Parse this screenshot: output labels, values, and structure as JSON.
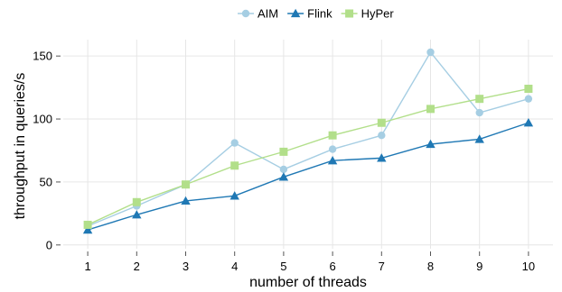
{
  "chart_data": {
    "type": "line",
    "x": [
      1,
      2,
      3,
      4,
      5,
      6,
      7,
      8,
      9,
      10
    ],
    "xlabel": "number of threads",
    "ylabel": "throughput in queries/s",
    "yticks": [
      0,
      50,
      100,
      150
    ],
    "ylim": [
      -3,
      163
    ],
    "grid": true,
    "legend_position": "top-center",
    "series": [
      {
        "name": "AIM",
        "marker": "circle",
        "color": "#a6cee3",
        "values": [
          15,
          31,
          48,
          81,
          60,
          76,
          87,
          153,
          105,
          116
        ]
      },
      {
        "name": "Flink",
        "marker": "triangle",
        "color": "#1f78b4",
        "values": [
          12,
          24,
          35,
          39,
          54,
          67,
          69,
          80,
          84,
          97
        ]
      },
      {
        "name": "HyPer",
        "marker": "square",
        "color": "#b2df8a",
        "values": [
          16,
          34,
          48,
          63,
          74,
          87,
          97,
          108,
          116,
          124
        ]
      }
    ]
  }
}
